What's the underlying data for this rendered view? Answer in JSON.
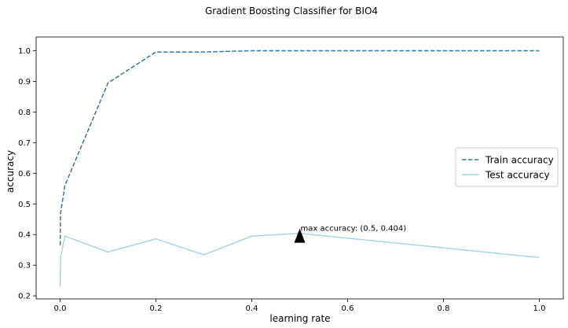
{
  "chart_data": {
    "type": "line",
    "title": "Gradient Boosting Classifier for BIO4",
    "xlabel": "learning rate",
    "ylabel": "accuracy",
    "xlim": [
      -0.05,
      1.05
    ],
    "ylim": [
      0.19,
      1.045
    ],
    "xticks": [
      0.0,
      0.2,
      0.4,
      0.6,
      0.8,
      1.0
    ],
    "xtick_labels": [
      "0.0",
      "0.2",
      "0.4",
      "0.6",
      "0.8",
      "1.0"
    ],
    "yticks": [
      0.2,
      0.3,
      0.4,
      0.5,
      0.6,
      0.7,
      0.8,
      0.9,
      1.0
    ],
    "ytick_labels": [
      "0.2",
      "0.3",
      "0.4",
      "0.5",
      "0.6",
      "0.7",
      "0.8",
      "0.9",
      "1.0"
    ],
    "grid": false,
    "legend_position": "center-right",
    "series": [
      {
        "name": "Train accuracy",
        "color": "#2f78b4",
        "style": "dashed",
        "x": [
          0.0001,
          0.001,
          0.01,
          0.1,
          0.2,
          0.3,
          0.4,
          0.5,
          1.0
        ],
        "y": [
          0.365,
          0.47,
          0.56,
          0.895,
          0.996,
          0.996,
          1.0,
          1.0,
          1.0
        ]
      },
      {
        "name": "Test accuracy",
        "color": "#a6d4e8",
        "style": "solid",
        "x": [
          0.0001,
          0.001,
          0.01,
          0.1,
          0.2,
          0.3,
          0.4,
          0.5,
          1.0
        ],
        "y": [
          0.23,
          0.325,
          0.395,
          0.343,
          0.386,
          0.334,
          0.395,
          0.404,
          0.325
        ]
      }
    ],
    "annotation": {
      "text": "max accuracy: (0.5, 0.404)",
      "x": 0.5,
      "y": 0.404,
      "marker": "triangle",
      "marker_color": "#000000"
    }
  }
}
